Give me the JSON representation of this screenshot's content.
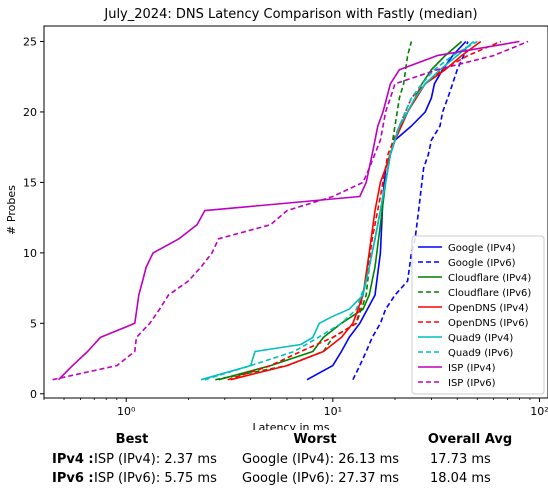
{
  "chart_data": {
    "type": "line",
    "title": "July_2024: DNS Latency Comparison with Fastly (median)",
    "xlabel": "Latency in ms",
    "ylabel": "# Probes",
    "xscale": "log",
    "xlim": [
      0.4,
      110
    ],
    "ylim": [
      -0.3,
      26.1
    ],
    "x_ticks": [
      {
        "value": 1,
        "label": "10⁰"
      },
      {
        "value": 10,
        "label": "10¹"
      },
      {
        "value": 100,
        "label": "10²"
      }
    ],
    "y_ticks": [
      0,
      5,
      10,
      15,
      20,
      25
    ],
    "grid": false,
    "legend_position": "lower-right",
    "series": [
      {
        "name": "Google (IPv4)",
        "color": "#0000ff",
        "dashed": false,
        "points": [
          [
            7.5,
            1
          ],
          [
            10,
            2
          ],
          [
            11,
            3
          ],
          [
            12,
            4
          ],
          [
            13.5,
            5
          ],
          [
            16,
            7
          ],
          [
            17,
            10
          ],
          [
            17.5,
            14
          ],
          [
            18,
            16
          ],
          [
            20,
            18
          ],
          [
            24,
            19
          ],
          [
            28,
            20
          ],
          [
            30,
            21
          ],
          [
            31,
            22
          ],
          [
            34,
            23
          ],
          [
            38,
            24
          ],
          [
            44,
            25
          ]
        ]
      },
      {
        "name": "Google (IPv6)",
        "color": "#0000ff",
        "dashed": true,
        "points": [
          [
            12.5,
            1
          ],
          [
            13.5,
            2
          ],
          [
            14.5,
            3
          ],
          [
            15.5,
            4
          ],
          [
            17,
            5
          ],
          [
            18,
            6
          ],
          [
            20,
            7
          ],
          [
            23,
            8
          ],
          [
            24,
            10
          ],
          [
            25,
            11
          ],
          [
            26,
            13
          ],
          [
            27.5,
            16
          ],
          [
            29,
            17
          ],
          [
            30,
            18
          ],
          [
            33,
            19
          ],
          [
            34,
            20
          ],
          [
            36,
            21
          ],
          [
            38,
            22
          ],
          [
            40,
            23
          ],
          [
            43,
            24
          ],
          [
            45,
            25
          ]
        ]
      },
      {
        "name": "Cloudflare (IPv4)",
        "color": "#008000",
        "dashed": false,
        "points": [
          [
            2.8,
            1
          ],
          [
            5,
            2
          ],
          [
            8,
            3
          ],
          [
            9,
            4
          ],
          [
            11,
            5
          ],
          [
            14,
            6
          ],
          [
            15,
            7
          ],
          [
            16,
            9
          ],
          [
            17,
            12
          ],
          [
            18,
            15
          ],
          [
            19,
            17
          ],
          [
            20,
            18
          ],
          [
            23,
            20
          ],
          [
            25,
            21
          ],
          [
            27,
            22
          ],
          [
            30,
            23
          ],
          [
            35,
            24
          ],
          [
            42,
            25
          ]
        ]
      },
      {
        "name": "Cloudflare (IPv6)",
        "color": "#008000",
        "dashed": true,
        "points": [
          [
            2.7,
            1
          ],
          [
            6,
            2
          ],
          [
            9,
            3
          ],
          [
            10,
            4
          ],
          [
            13,
            5
          ],
          [
            14.5,
            7
          ],
          [
            15,
            9
          ],
          [
            16,
            11
          ],
          [
            17,
            13
          ],
          [
            18,
            15
          ],
          [
            19,
            17
          ],
          [
            20,
            19
          ],
          [
            21,
            21
          ],
          [
            22,
            22
          ],
          [
            23,
            24
          ],
          [
            24,
            25
          ]
        ]
      },
      {
        "name": "OpenDNS (IPv4)",
        "color": "#ff0000",
        "dashed": false,
        "points": [
          [
            3.2,
            1
          ],
          [
            6,
            2
          ],
          [
            9,
            3
          ],
          [
            11,
            4
          ],
          [
            12.5,
            5
          ],
          [
            14,
            7
          ],
          [
            15,
            10
          ],
          [
            16,
            13
          ],
          [
            17,
            15
          ],
          [
            18,
            16
          ],
          [
            19,
            17
          ],
          [
            20,
            18
          ],
          [
            23,
            20
          ],
          [
            28,
            22
          ],
          [
            35,
            23
          ],
          [
            42,
            24
          ],
          [
            52,
            25
          ]
        ]
      },
      {
        "name": "OpenDNS (IPv6)",
        "color": "#ff0000",
        "dashed": true,
        "points": [
          [
            3.1,
            1
          ],
          [
            5,
            2
          ],
          [
            7,
            3
          ],
          [
            10,
            4
          ],
          [
            13,
            5
          ],
          [
            14.5,
            8
          ],
          [
            15.5,
            11
          ],
          [
            17,
            14
          ],
          [
            18.5,
            17
          ],
          [
            21,
            19
          ],
          [
            24,
            21
          ],
          [
            28,
            22
          ],
          [
            34,
            23
          ],
          [
            45,
            24
          ],
          [
            65,
            25
          ]
        ]
      },
      {
        "name": "Quad9 (IPv4)",
        "color": "#00bfbf",
        "dashed": false,
        "points": [
          [
            2.3,
            1
          ],
          [
            4,
            2
          ],
          [
            4.2,
            3
          ],
          [
            7,
            3.5
          ],
          [
            8,
            4
          ],
          [
            8.6,
            5
          ],
          [
            10,
            5.5
          ],
          [
            12,
            6
          ],
          [
            14,
            7
          ],
          [
            15,
            9
          ],
          [
            16,
            11
          ],
          [
            17,
            13
          ],
          [
            18,
            15
          ],
          [
            19,
            17
          ],
          [
            21,
            19
          ],
          [
            23,
            20
          ],
          [
            25,
            21
          ],
          [
            28,
            22
          ],
          [
            33,
            23
          ],
          [
            40,
            24
          ],
          [
            48,
            25
          ]
        ]
      },
      {
        "name": "Quad9 (IPv6)",
        "color": "#00bfbf",
        "dashed": true,
        "points": [
          [
            2.4,
            1
          ],
          [
            4,
            2
          ],
          [
            6.5,
            3
          ],
          [
            8.5,
            4
          ],
          [
            11,
            5
          ],
          [
            13,
            6
          ],
          [
            14.5,
            8
          ],
          [
            16,
            11
          ],
          [
            17.5,
            14
          ],
          [
            19,
            17
          ],
          [
            21,
            19
          ],
          [
            24,
            21
          ],
          [
            27,
            22
          ],
          [
            31,
            23
          ],
          [
            38,
            24
          ],
          [
            50,
            25
          ]
        ]
      },
      {
        "name": "ISP (IPv4)",
        "color": "#bf00bf",
        "dashed": false,
        "points": [
          [
            0.47,
            1
          ],
          [
            0.55,
            2
          ],
          [
            0.65,
            3
          ],
          [
            0.75,
            4
          ],
          [
            1.1,
            5
          ],
          [
            1.15,
            7
          ],
          [
            1.2,
            8
          ],
          [
            1.25,
            9
          ],
          [
            1.35,
            10
          ],
          [
            1.8,
            11
          ],
          [
            2.2,
            12
          ],
          [
            2.4,
            13
          ],
          [
            13.5,
            14
          ],
          [
            14.5,
            15
          ],
          [
            15.5,
            17
          ],
          [
            16,
            18
          ],
          [
            16.5,
            19
          ],
          [
            17.5,
            20
          ],
          [
            19,
            22
          ],
          [
            21,
            23
          ],
          [
            32,
            24
          ],
          [
            80,
            25
          ]
        ]
      },
      {
        "name": "ISP (IPv6)",
        "color": "#bf00bf",
        "dashed": true,
        "points": [
          [
            0.44,
            1
          ],
          [
            0.9,
            2
          ],
          [
            1.1,
            3
          ],
          [
            1.12,
            4
          ],
          [
            1.3,
            5
          ],
          [
            1.45,
            6
          ],
          [
            1.6,
            7
          ],
          [
            2,
            8
          ],
          [
            2.3,
            9
          ],
          [
            2.6,
            10
          ],
          [
            2.8,
            11
          ],
          [
            5,
            12
          ],
          [
            6,
            13
          ],
          [
            10,
            14
          ],
          [
            14,
            15
          ],
          [
            15,
            16
          ],
          [
            17,
            18
          ],
          [
            18,
            20
          ],
          [
            19,
            21
          ],
          [
            20,
            22
          ],
          [
            32,
            23
          ],
          [
            60,
            24
          ],
          [
            88,
            25
          ]
        ]
      }
    ]
  },
  "summary": {
    "headers": {
      "best": "Best",
      "worst": "Worst",
      "avg": "Overall Avg"
    },
    "rows": [
      {
        "label": "IPv4 :",
        "best": "ISP (IPv4): 2.37 ms",
        "worst": "Google (IPv4): 26.13 ms",
        "avg": "17.73 ms"
      },
      {
        "label": "IPv6 :",
        "best": "ISP (IPv6): 5.75 ms",
        "worst": "Google (IPv6): 27.37 ms",
        "avg": "18.04 ms"
      }
    ]
  }
}
